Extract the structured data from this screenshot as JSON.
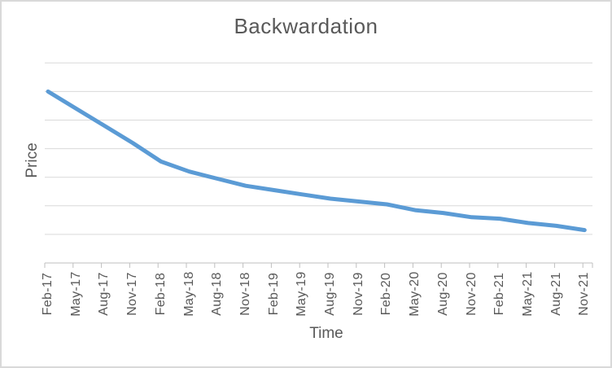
{
  "chart_data": {
    "type": "line",
    "title": "Backwardation",
    "xlabel": "Time",
    "ylabel": "Price",
    "categories": [
      "Feb-17",
      "May-17",
      "Aug-17",
      "Nov-17",
      "Feb-18",
      "May-18",
      "Aug-18",
      "Nov-18",
      "Feb-19",
      "May-19",
      "Aug-19",
      "Nov-19",
      "Feb-20",
      "May-20",
      "Aug-20",
      "Nov-20",
      "Feb-21",
      "May-21",
      "Aug-21",
      "Nov-21"
    ],
    "series": [
      {
        "name": "Price",
        "values": [
          6.0,
          5.4,
          4.8,
          4.2,
          3.55,
          3.2,
          2.95,
          2.7,
          2.55,
          2.4,
          2.25,
          2.15,
          2.05,
          1.85,
          1.75,
          1.6,
          1.55,
          1.4,
          1.3,
          1.15
        ]
      }
    ],
    "ylim": [
      0,
      7
    ],
    "y_gridline_values": [
      1,
      2,
      3,
      4,
      5,
      6,
      7
    ],
    "y_tick_labels_shown": false,
    "x_label_rotation_degrees": 90,
    "grid": "horizontal-only",
    "legend": "none",
    "colors": {
      "line": "#5B9BD5",
      "gridline": "#D9D9D9",
      "axis": "#BFBFBF",
      "text": "#595959",
      "background": "#FFFFFF",
      "border": "#D9D9D9"
    }
  }
}
